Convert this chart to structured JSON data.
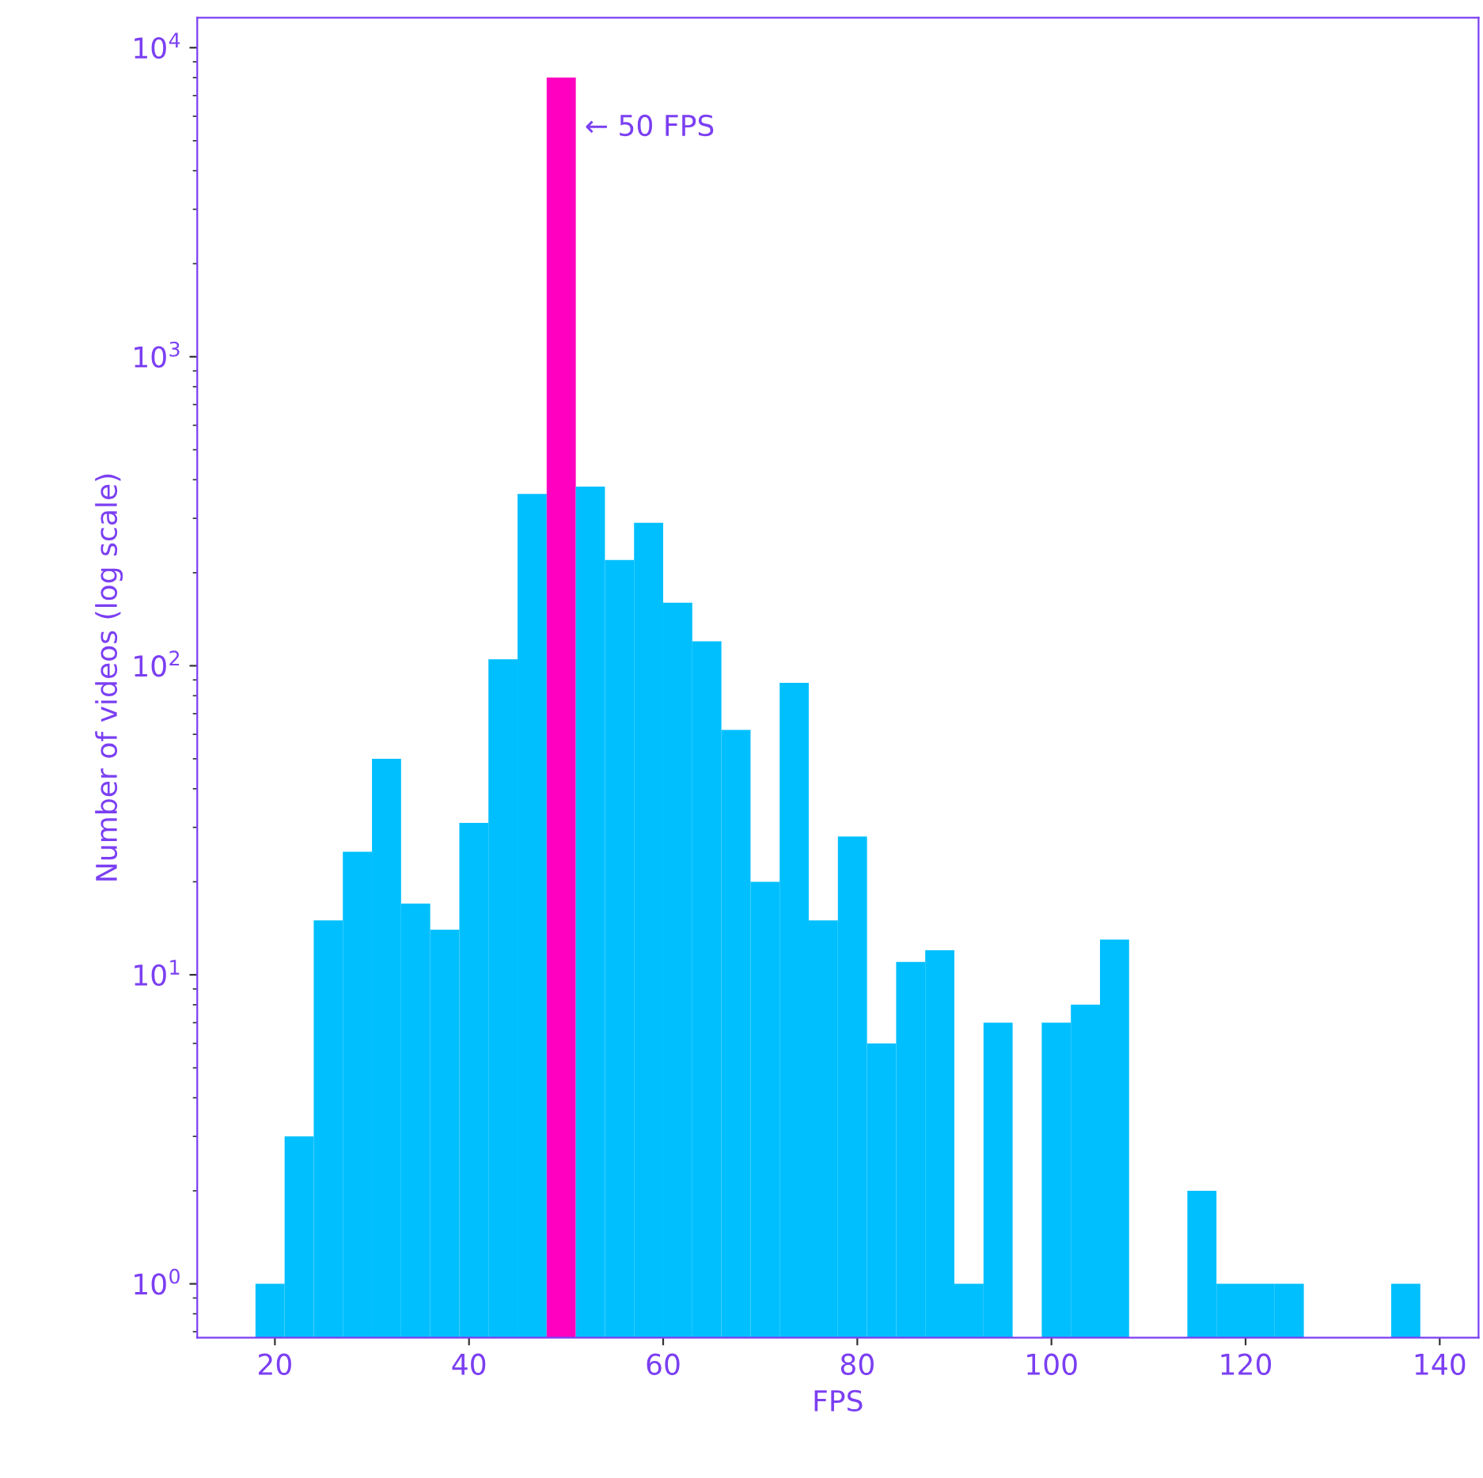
{
  "chart_data": {
    "type": "histogram",
    "xlabel": "FPS",
    "ylabel": "Number of videos (log scale)",
    "bins": [
      18,
      21,
      24,
      27,
      30,
      33,
      36,
      39,
      42,
      45,
      48,
      51,
      54,
      57,
      60,
      63,
      66,
      69,
      72,
      75,
      78,
      81,
      84,
      87,
      90,
      93,
      96,
      99,
      102,
      105,
      108,
      111,
      114,
      117,
      120,
      123,
      126,
      129,
      132,
      135,
      138
    ],
    "values": [
      1,
      3,
      15,
      25,
      50,
      17,
      14,
      31,
      105,
      360,
      8000,
      380,
      220,
      290,
      160,
      120,
      62,
      20,
      88,
      15,
      28,
      6,
      11,
      12,
      1,
      7,
      null,
      7,
      8,
      13,
      null,
      null,
      2,
      1,
      1,
      1,
      null,
      null,
      null,
      1
    ],
    "colors": [
      "#00bfff",
      "#00bfff",
      "#00bfff",
      "#00bfff",
      "#00bfff",
      "#00bfff",
      "#00bfff",
      "#00bfff",
      "#00bfff",
      "#00bfff",
      "#ff00c0",
      "#00bfff",
      "#00bfff",
      "#00bfff",
      "#00bfff",
      "#00bfff",
      "#00bfff",
      "#00bfff",
      "#00bfff",
      "#00bfff",
      "#00bfff",
      "#00bfff",
      "#00bfff",
      "#00bfff",
      "#00bfff",
      "#00bfff",
      "#00bfff",
      "#00bfff",
      "#00bfff",
      "#00bfff",
      "#00bfff",
      "#00bfff",
      "#00bfff",
      "#00bfff",
      "#00bfff",
      "#00bfff",
      "#00bfff",
      "#00bfff",
      "#00bfff",
      "#00bfff"
    ],
    "log": "y",
    "xlim": [
      12,
      144
    ],
    "ylim": [
      0.67,
      12500
    ],
    "xticks": [
      20,
      40,
      60,
      80,
      100,
      120,
      140
    ],
    "yticks": [
      {
        "value": 1,
        "label": "10$^{0}$"
      },
      {
        "value": 10,
        "label": "10$^{1}$"
      },
      {
        "value": 100,
        "label": "10$^{2}$"
      },
      {
        "value": 1000,
        "label": "10$^{3}$"
      },
      {
        "value": 10000,
        "label": "10$^{4}$"
      }
    ],
    "annotations": [
      {
        "text": "← 50 FPS",
        "x": 51,
        "y": 5500
      }
    ],
    "grid": false
  }
}
